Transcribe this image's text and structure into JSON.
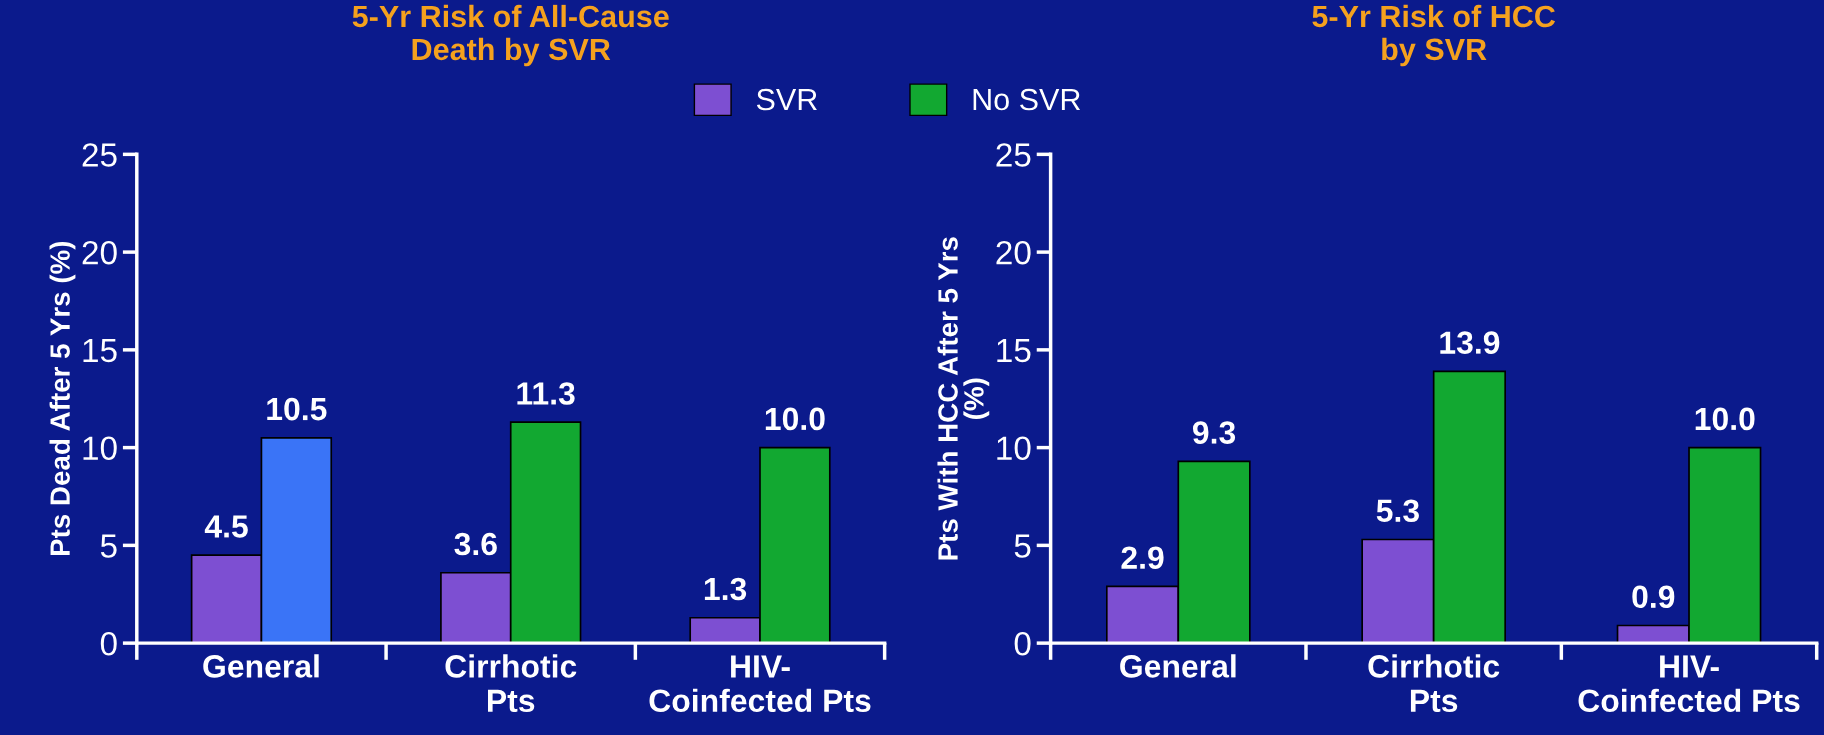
{
  "chart_data": [
    {
      "type": "bar",
      "title": "5-Yr Risk of All-Cause\nDeath by SVR",
      "ylabel": "Pts Dead After 5 Yrs (%)",
      "categories": [
        "General",
        "Cirrhotic\nPts",
        "HIV-\nCoinfected Pts"
      ],
      "series": [
        {
          "name": "SVR",
          "color": "#7d4fd2",
          "values": [
            4.5,
            3.6,
            1.3
          ]
        },
        {
          "name": "No SVR",
          "color": "#12a831",
          "colors": [
            "#3a74f7",
            "#12a831",
            "#12a831"
          ],
          "values": [
            10.5,
            11.3,
            10.0
          ],
          "value_labels": [
            "10.5",
            "11.3",
            "10.0"
          ]
        }
      ],
      "ylim": [
        0,
        25
      ],
      "yticks": [
        0,
        5,
        10,
        15,
        20,
        25
      ],
      "data_labels": true,
      "legend": "top right",
      "grid": false
    },
    {
      "type": "bar",
      "title": "5-Yr Risk of HCC\nby SVR",
      "ylabel": "Pts With HCC After 5 Yrs\n(%)",
      "categories": [
        "General",
        "Cirrhotic\nPts",
        "HIV-\nCoinfected Pts"
      ],
      "series": [
        {
          "color": "#7d4fd2",
          "values": [
            2.9,
            5.3,
            0.9
          ]
        },
        {
          "color": "#12a831",
          "values": [
            9.3,
            13.9,
            10.0
          ],
          "value_labels": [
            "9.3",
            "13.9",
            "10.0"
          ]
        }
      ],
      "ylim": [
        0,
        25
      ],
      "yticks": [
        0,
        5,
        10,
        15,
        20,
        25
      ],
      "data_labels": true,
      "grid": false
    }
  ]
}
